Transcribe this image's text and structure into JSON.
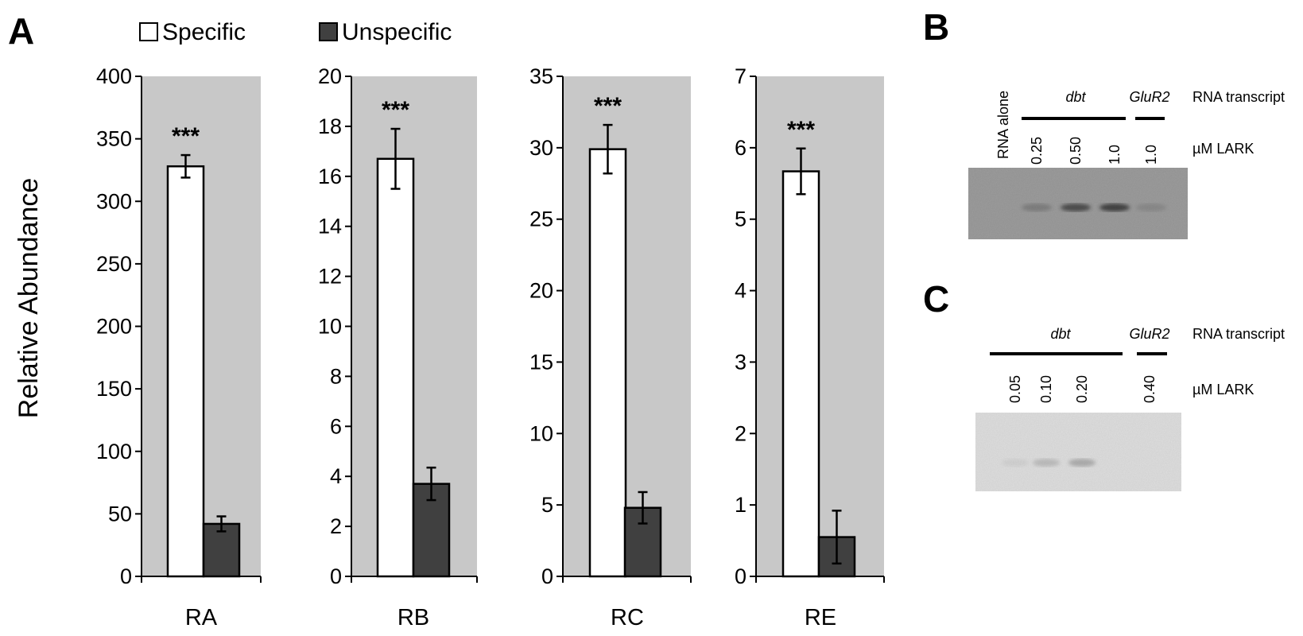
{
  "panels": {
    "a": "A",
    "b": "B",
    "c": "C"
  },
  "legend": [
    {
      "name": "Specific",
      "color": "#ffffff"
    },
    {
      "name": "Unspecific",
      "color": "#404040"
    }
  ],
  "ylabel": "Relative Abundance",
  "significance": "***",
  "chart_data": [
    {
      "type": "bar",
      "category": "RA",
      "ylim": [
        0,
        400
      ],
      "yticks": [
        "0",
        "50",
        "100",
        "150",
        "200",
        "250",
        "300",
        "350",
        "400"
      ],
      "series": [
        {
          "name": "Specific",
          "value": 328,
          "error": 9
        },
        {
          "name": "Unspecific",
          "value": 42,
          "error": 6
        }
      ],
      "annotation": "***"
    },
    {
      "type": "bar",
      "category": "RB",
      "ylim": [
        0,
        20
      ],
      "yticks": [
        "0",
        "2",
        "4",
        "6",
        "8",
        "10",
        "12",
        "14",
        "16",
        "18",
        "20"
      ],
      "series": [
        {
          "name": "Specific",
          "value": 16.7,
          "error": 1.2
        },
        {
          "name": "Unspecific",
          "value": 3.7,
          "error": 0.65
        }
      ],
      "annotation": "***"
    },
    {
      "type": "bar",
      "category": "RC",
      "ylim": [
        0,
        35
      ],
      "yticks": [
        "0",
        "5",
        "10",
        "15",
        "20",
        "25",
        "30",
        "35"
      ],
      "series": [
        {
          "name": "Specific",
          "value": 29.9,
          "error": 1.7
        },
        {
          "name": "Unspecific",
          "value": 4.8,
          "error": 1.1
        }
      ],
      "annotation": "***"
    },
    {
      "type": "bar",
      "category": "RE",
      "ylim": [
        0,
        7
      ],
      "yticks": [
        "0",
        "1",
        "2",
        "3",
        "4",
        "5",
        "6",
        "7"
      ],
      "series": [
        {
          "name": "Specific",
          "value": 5.67,
          "error": 0.32
        },
        {
          "name": "Unspecific",
          "value": 0.55,
          "error": 0.37
        }
      ],
      "annotation": "***"
    }
  ],
  "gel_b": {
    "rna_alone": "RNA alone",
    "dbt": "dbt",
    "glur2": "GluR2",
    "transcript_label": "RNA transcript",
    "lark_label": "µM LARK",
    "lanes": [
      "0.25",
      "0.50",
      "1.0",
      "1.0"
    ],
    "band_intensity": [
      0,
      0.25,
      0.7,
      0.8,
      0.15
    ]
  },
  "gel_c": {
    "dbt": "dbt",
    "glur2": "GluR2",
    "transcript_label": "RNA transcript",
    "lark_label": "µM LARK",
    "lanes": [
      "0.05",
      "0.10",
      "0.20",
      "0.40",
      "0.40"
    ],
    "band_intensity": [
      0,
      0.1,
      0.3,
      0.45,
      0
    ]
  }
}
